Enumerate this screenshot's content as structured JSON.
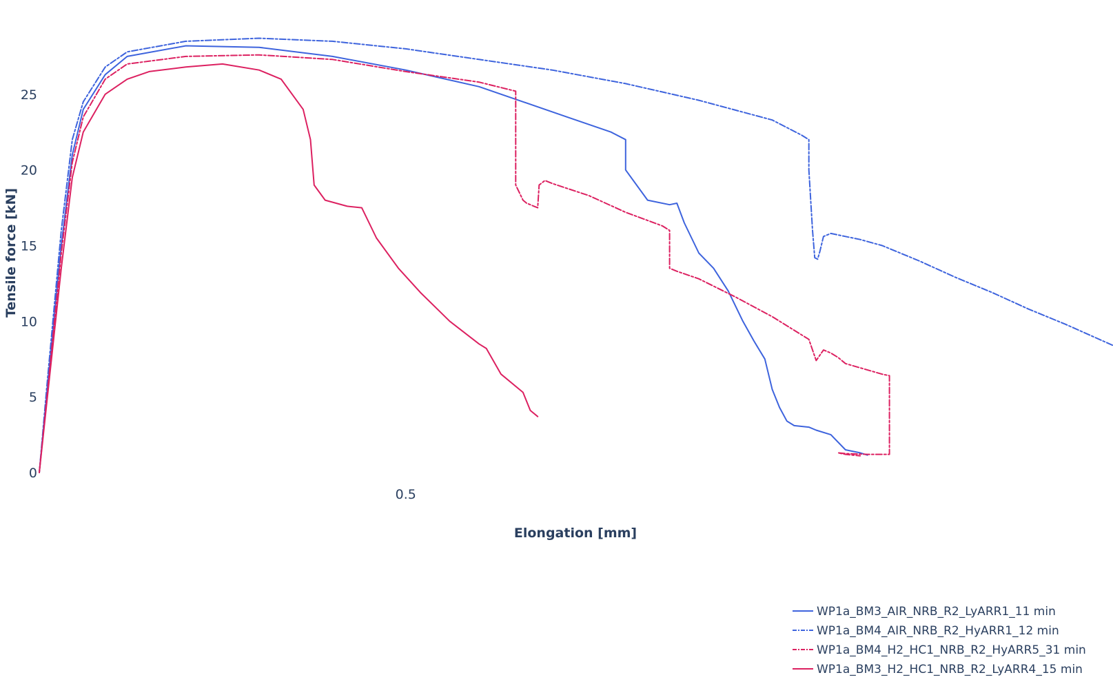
{
  "chart_data": {
    "type": "line",
    "title": "",
    "xlabel": "Elongation [mm]",
    "ylabel": "Tensile force [kN]",
    "xlim": [
      0,
      1.465
    ],
    "ylim": [
      0,
      30.5
    ],
    "x_ticks": [
      0.5
    ],
    "x_tick_labels": [
      "0.5"
    ],
    "y_ticks": [
      0,
      5,
      10,
      15,
      20,
      25
    ],
    "y_tick_labels": [
      "0",
      "5",
      "10",
      "15",
      "20",
      "25"
    ],
    "grid": false,
    "legend_position": "bottom-right",
    "series": [
      {
        "name": "WP1a_BM3_AIR_NRB_R2_LyARR1_11 min",
        "color": "#3d63dd",
        "dash": "solid",
        "x": [
          0,
          0.01,
          0.03,
          0.045,
          0.06,
          0.09,
          0.12,
          0.2,
          0.3,
          0.4,
          0.5,
          0.6,
          0.66,
          0.72,
          0.78,
          0.8,
          0.8,
          0.83,
          0.86,
          0.87,
          0.88,
          0.9,
          0.92,
          0.94,
          0.96,
          0.975,
          0.98,
          0.99,
          1.0,
          1.01,
          1.02,
          1.03,
          1.04,
          1.05,
          1.06,
          1.08,
          1.1,
          1.105,
          1.12,
          1.13
        ],
        "y": [
          0,
          5,
          15,
          21,
          24,
          26.3,
          27.5,
          28.2,
          28.1,
          27.5,
          26.6,
          25.5,
          24.5,
          23.5,
          22.5,
          22,
          20,
          18,
          17.7,
          17.8,
          16.5,
          14.5,
          13.5,
          12,
          10,
          8.7,
          8.3,
          7.5,
          5.5,
          4.3,
          3.4,
          3.1,
          3.05,
          3,
          2.8,
          2.5,
          1.5,
          1.45,
          1.3,
          1.15
        ]
      },
      {
        "name": "WP1a_BM4_AIR_NRB_R2_HyARR1_12 min",
        "color": "#3d63dd",
        "dash": "dashdot",
        "x": [
          0,
          0.01,
          0.03,
          0.045,
          0.06,
          0.09,
          0.12,
          0.2,
          0.3,
          0.4,
          0.5,
          0.6,
          0.7,
          0.8,
          0.9,
          1.0,
          1.04,
          1.05,
          1.05,
          1.055,
          1.058,
          1.062,
          1.065,
          1.07,
          1.08,
          1.1,
          1.12,
          1.15,
          1.2,
          1.25,
          1.3,
          1.35,
          1.4,
          1.465
        ],
        "y": [
          0,
          5.5,
          16,
          22,
          24.5,
          26.8,
          27.8,
          28.5,
          28.7,
          28.5,
          28,
          27.3,
          26.6,
          25.7,
          24.6,
          23.3,
          22.3,
          22,
          20,
          16,
          14.2,
          14.1,
          14.6,
          15.6,
          15.8,
          15.6,
          15.4,
          15,
          14,
          12.9,
          11.9,
          10.8,
          9.8,
          8.4
        ]
      },
      {
        "name": "WP1a_BM4_H2_HC1_NRB_R2_HyARR5_31 min",
        "color": "#dc2060",
        "dash": "dashdot",
        "x": [
          0,
          0.01,
          0.03,
          0.045,
          0.06,
          0.09,
          0.12,
          0.2,
          0.3,
          0.4,
          0.5,
          0.6,
          0.65,
          0.65,
          0.655,
          0.66,
          0.665,
          0.675,
          0.68,
          0.682,
          0.69,
          0.7,
          0.75,
          0.8,
          0.85,
          0.86,
          0.86,
          0.87,
          0.9,
          0.95,
          1.0,
          1.05,
          1.06,
          1.07,
          1.08,
          1.09,
          1.1,
          1.15,
          1.16,
          1.16,
          1.13,
          1.1,
          1.09,
          1.1,
          1.12
        ],
        "y": [
          0,
          4.8,
          14.5,
          20.5,
          23.5,
          26,
          27,
          27.5,
          27.6,
          27.3,
          26.5,
          25.8,
          25.2,
          19,
          18.5,
          18,
          17.8,
          17.6,
          17.5,
          19,
          19.3,
          19.1,
          18.3,
          17.2,
          16.3,
          16,
          13.5,
          13.3,
          12.8,
          11.6,
          10.3,
          8.8,
          7.4,
          8.1,
          7.9,
          7.6,
          7.2,
          6.5,
          6.4,
          1.2,
          1.2,
          1.25,
          1.3,
          1.2,
          1.1
        ]
      },
      {
        "name": "WP1a_BM3_H2_HC1_NRB_R2_LyARR4_15 min",
        "color": "#dc2060",
        "dash": "solid",
        "x": [
          0,
          0.01,
          0.03,
          0.045,
          0.06,
          0.09,
          0.12,
          0.15,
          0.2,
          0.25,
          0.3,
          0.33,
          0.36,
          0.37,
          0.375,
          0.39,
          0.42,
          0.44,
          0.46,
          0.49,
          0.52,
          0.56,
          0.6,
          0.61,
          0.63,
          0.66,
          0.67,
          0.68
        ],
        "y": [
          0,
          4.5,
          13.5,
          19.5,
          22.5,
          25,
          26,
          26.5,
          26.8,
          27,
          26.6,
          26,
          24,
          22,
          19,
          18,
          17.6,
          17.5,
          15.5,
          13.5,
          11.9,
          10,
          8.5,
          8.2,
          6.5,
          5.3,
          4.1,
          3.7
        ]
      }
    ]
  }
}
